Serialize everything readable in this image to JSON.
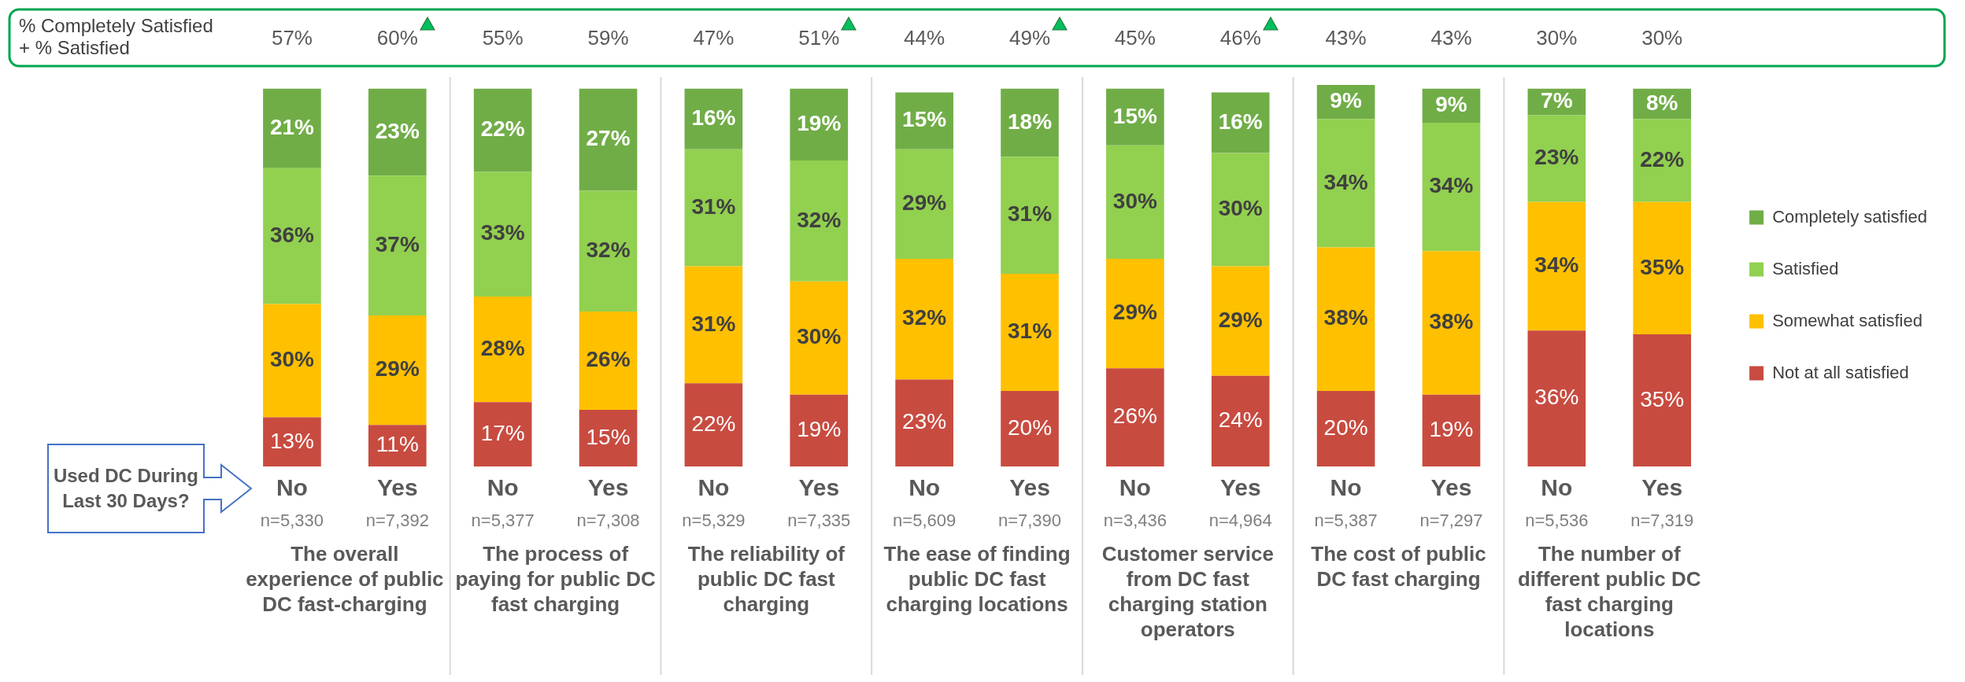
{
  "chart_data": {
    "type": "bar",
    "stacked": true,
    "legend": "right",
    "categories": [
      "No",
      "Yes",
      "No",
      "Yes",
      "No",
      "Yes",
      "No",
      "Yes",
      "No",
      "Yes",
      "No",
      "Yes",
      "No",
      "Yes"
    ],
    "series": [
      {
        "name": "Not at all satisfied",
        "color": "#c84b40",
        "values": [
          13,
          11,
          17,
          15,
          22,
          19,
          23,
          20,
          26,
          24,
          20,
          19,
          36,
          35
        ],
        "value_labels": [
          "13%",
          "11%",
          "17%",
          "15%",
          "22%",
          "19%",
          "23%",
          "20%",
          "26%",
          "24%",
          "20%",
          "19%",
          "36%",
          "35%"
        ]
      },
      {
        "name": "Somewhat satisfied",
        "color": "#ffc000",
        "values": [
          30,
          29,
          28,
          26,
          31,
          30,
          32,
          31,
          29,
          29,
          38,
          38,
          34,
          35
        ],
        "value_labels": [
          "30%",
          "29%",
          "28%",
          "26%",
          "31%",
          "30%",
          "32%",
          "31%",
          "29%",
          "29%",
          "38%",
          "38%",
          "34%",
          "35%"
        ]
      },
      {
        "name": "Satisfied",
        "color": "#92d050",
        "values": [
          36,
          37,
          33,
          32,
          31,
          32,
          29,
          31,
          30,
          30,
          34,
          34,
          23,
          22
        ],
        "value_labels": [
          "36%",
          "37%",
          "33%",
          "32%",
          "31%",
          "32%",
          "29%",
          "31%",
          "30%",
          "30%",
          "34%",
          "34%",
          "23%",
          "22%"
        ]
      },
      {
        "name": "Completely satisfied",
        "color": "#70ad47",
        "values": [
          21,
          23,
          22,
          27,
          16,
          19,
          15,
          18,
          15,
          16,
          9,
          9,
          7,
          8
        ],
        "value_labels": [
          "21%",
          "23%",
          "22%",
          "27%",
          "16%",
          "19%",
          "15%",
          "18%",
          "15%",
          "16%",
          "9%",
          "9%",
          "7%",
          "8%"
        ]
      }
    ],
    "annotations": [
      "% Completely Satisfied + % Satisfied",
      "Used DC During Last 30 Days?",
      "The overall experience of public DC fast-charging",
      "The process of paying for public DC fast charging",
      "The reliability of public DC fast charging",
      "The ease of finding public DC fast charging locations",
      "Customer service from DC fast charging station operators",
      "The cost of public DC fast charging",
      "The number of different public DC fast charging locations",
      "n=5,330",
      "n=7,392",
      "n=5,377",
      "n=7,308",
      "n=5,329",
      "n=7,335",
      "n=5,609",
      "n=7,390",
      "n=3,436",
      "n=4,964",
      "n=5,387",
      "n=7,297",
      "n=5,536",
      "n=7,319",
      "57%",
      "60%",
      "55%",
      "59%",
      "47%",
      "51%",
      "44%",
      "49%",
      "45%",
      "46%",
      "43%",
      "43%",
      "30%",
      "30%"
    ]
  }
}
